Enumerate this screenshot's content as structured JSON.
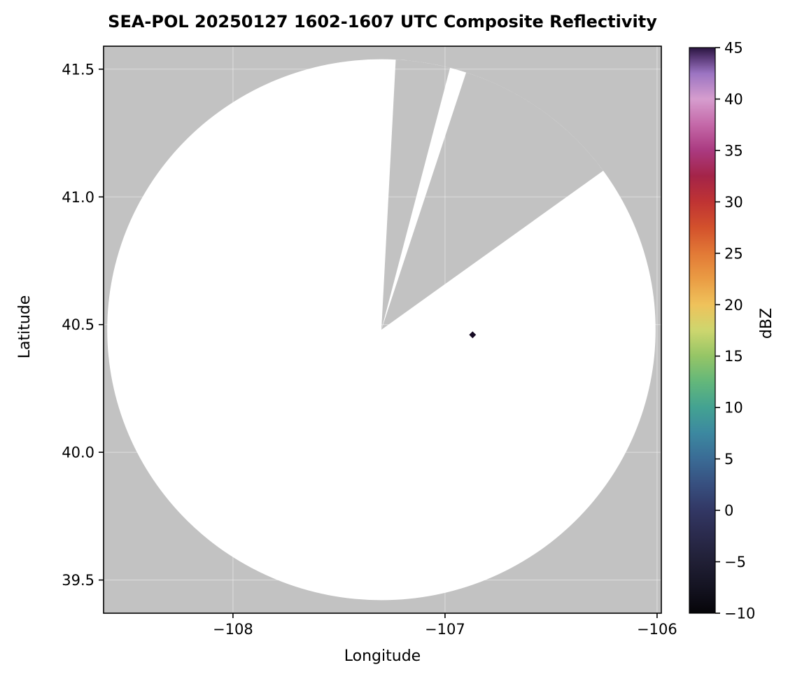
{
  "figure": {
    "title": "SEA-POL 20250127 1602-1607 UTC Composite Reflectivity",
    "xlabel": "Longitude",
    "ylabel": "Latitude"
  },
  "chart_data": {
    "type": "heatmap",
    "subtype": "radar-composite-reflectivity-map",
    "title": "SEA-POL 20250127 1602-1607 UTC Composite Reflectivity",
    "xlabel": "Longitude",
    "ylabel": "Latitude",
    "xlim": [
      -108.61,
      -105.98
    ],
    "ylim": [
      39.37,
      41.59
    ],
    "x_ticks": [
      -108,
      -107,
      -106
    ],
    "x_tick_labels": [
      "−108",
      "−107",
      "−106"
    ],
    "y_ticks": [
      39.5,
      40.0,
      40.5,
      41.0,
      41.5
    ],
    "y_tick_labels": [
      "39.5",
      "40.0",
      "40.5",
      "41.0",
      "41.5"
    ],
    "grid": {
      "visible": true,
      "color": "#ffffff"
    },
    "radar_coverage": {
      "center_lon": -107.3,
      "center_lat": 40.48,
      "radius_lon_deg": 1.293,
      "radius_lat_deg": 1.059,
      "coverage_color": "#ffffff",
      "no_data_color": "#c2c2c2",
      "missing_sectors_deg_from_north": [
        [
          3,
          14.5
        ],
        [
          18,
          54
        ]
      ]
    },
    "echoes": [
      {
        "lon": -106.87,
        "lat": 40.46,
        "value_dbz": 45,
        "color": "#150a23"
      }
    ],
    "colorbar": {
      "label": "dBZ",
      "min": -10,
      "max": 45,
      "orientation": "vertical",
      "ticks": [
        {
          "value": -10,
          "label": "−10"
        },
        {
          "value": -5,
          "label": "−5"
        },
        {
          "value": 0,
          "label": "0"
        },
        {
          "value": 5,
          "label": "5"
        },
        {
          "value": 10,
          "label": "10"
        },
        {
          "value": 15,
          "label": "15"
        },
        {
          "value": 20,
          "label": "20"
        },
        {
          "value": 25,
          "label": "25"
        },
        {
          "value": 30,
          "label": "30"
        },
        {
          "value": 35,
          "label": "35"
        },
        {
          "value": 40,
          "label": "40"
        },
        {
          "value": 45,
          "label": "45"
        }
      ],
      "stops": [
        {
          "value": -10,
          "color": "#060509"
        },
        {
          "value": -7.5,
          "color": "#141321"
        },
        {
          "value": -5,
          "color": "#201f35"
        },
        {
          "value": -2.5,
          "color": "#2a2a4c"
        },
        {
          "value": 0,
          "color": "#323764"
        },
        {
          "value": 2.5,
          "color": "#374f7f"
        },
        {
          "value": 5,
          "color": "#3a6b95"
        },
        {
          "value": 7.5,
          "color": "#3c88a0"
        },
        {
          "value": 10,
          "color": "#43a292"
        },
        {
          "value": 12.5,
          "color": "#63b77a"
        },
        {
          "value": 15,
          "color": "#95c566"
        },
        {
          "value": 17.5,
          "color": "#cdd66e"
        },
        {
          "value": 20,
          "color": "#efc25b"
        },
        {
          "value": 22.5,
          "color": "#ea9c44"
        },
        {
          "value": 25,
          "color": "#e27936"
        },
        {
          "value": 27.5,
          "color": "#d3512c"
        },
        {
          "value": 30,
          "color": "#bf3333"
        },
        {
          "value": 32.5,
          "color": "#a42448"
        },
        {
          "value": 35,
          "color": "#aa3a80"
        },
        {
          "value": 37.5,
          "color": "#c468a8"
        },
        {
          "value": 40,
          "color": "#d69dce"
        },
        {
          "value": 42.5,
          "color": "#9b74c2"
        },
        {
          "value": 44,
          "color": "#5a3a78"
        },
        {
          "value": 45,
          "color": "#2a1540"
        }
      ]
    }
  }
}
